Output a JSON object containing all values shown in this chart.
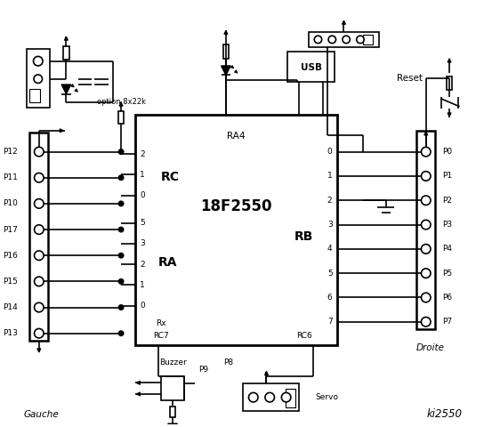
{
  "title": "ki2550",
  "bg_color": "#ffffff",
  "fig_width": 5.53,
  "fig_height": 4.8,
  "chip_label": "18F2550",
  "chip_sublabel": "RA4",
  "rc_label": "RC",
  "ra_label": "RA",
  "rb_label": "RB",
  "rc_pins_left": [
    "2",
    "1",
    "0"
  ],
  "ra_pins_left": [
    "5",
    "3",
    "2",
    "1",
    "0"
  ],
  "rb_pins_right": [
    "0",
    "1",
    "2",
    "3",
    "4",
    "5",
    "6",
    "7"
  ],
  "left_labels": [
    "P12",
    "P11",
    "P10",
    "P17",
    "P16",
    "P15",
    "P14",
    "P13"
  ],
  "right_labels": [
    "P0",
    "P1",
    "P2",
    "P3",
    "P4",
    "P5",
    "P6",
    "P7"
  ],
  "option_label": "option 8x22k",
  "gauche_label": "Gauche",
  "droite_label": "Droite",
  "usb_label": "USB",
  "reset_label": "Reset",
  "buzzer_label": "Buzzer",
  "servo_label": "Servo",
  "p8_label": "P8",
  "p9_label": "P9",
  "rc6_label": "RC6",
  "rc7_label": "RC7",
  "rx_label": "Rx",
  "lw": 1.2,
  "fs": 7.5,
  "fs_small": 6.5,
  "fs_large": 12
}
